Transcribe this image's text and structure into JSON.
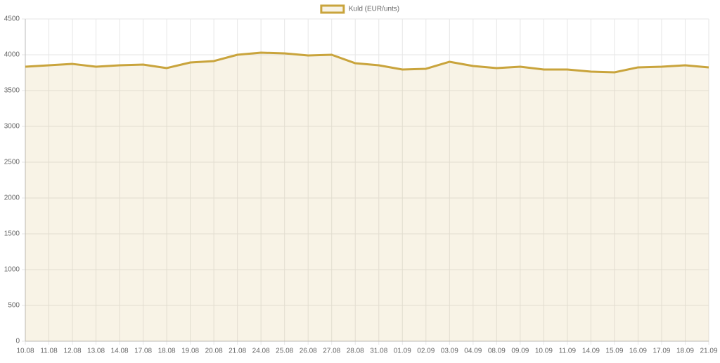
{
  "chart_data": {
    "type": "line",
    "categories": [
      "10.08",
      "11.08",
      "12.08",
      "13.08",
      "14.08",
      "17.08",
      "18.08",
      "19.08",
      "20.08",
      "21.08",
      "24.08",
      "25.08",
      "26.08",
      "27.08",
      "28.08",
      "31.08",
      "01.09",
      "02.09",
      "03.09",
      "04.09",
      "08.09",
      "09.09",
      "10.09",
      "11.09",
      "14.09",
      "15.09",
      "16.09",
      "17.09",
      "18.09",
      "21.09"
    ],
    "series": [
      {
        "name": "Kuld (EUR/unts)",
        "color": "#c9a43c",
        "fill": true,
        "values": [
          3833,
          3853,
          3872,
          3833,
          3853,
          3863,
          3814,
          3892,
          3912,
          4000,
          4029,
          4020,
          3990,
          4000,
          3882,
          3853,
          3794,
          3804,
          3902,
          3843,
          3814,
          3833,
          3794,
          3794,
          3765,
          3755,
          3824,
          3833,
          3853,
          3824
        ]
      }
    ],
    "ylim": [
      0,
      4500
    ],
    "yticks": [
      0,
      500,
      1000,
      1500,
      2000,
      2500,
      3000,
      3500,
      4000,
      4500
    ],
    "grid": true,
    "legend": "top"
  }
}
